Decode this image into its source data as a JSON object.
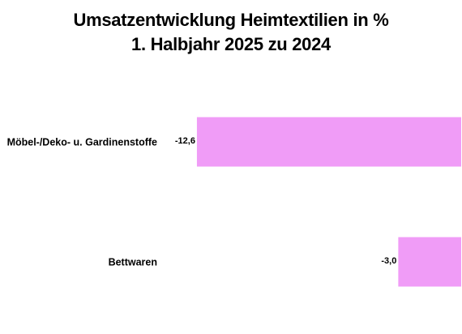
{
  "chart_data": {
    "type": "bar",
    "orientation": "horizontal",
    "title": "Umsatzentwicklung Heimtextilien in %",
    "subtitle": "1. Halbjahr 2025 zu 2024",
    "categories": [
      "Möbel-/Deko- u. Gardinenstoffe",
      "Bettwaren"
    ],
    "values": [
      -12.6,
      -3.0
    ],
    "value_labels": [
      "-12,6",
      "-3,0"
    ],
    "xlim": [
      -13.1,
      0
    ],
    "bar_color": "#f09cf7",
    "grid": false,
    "legend": "none",
    "xlabel": "",
    "ylabel": ""
  }
}
